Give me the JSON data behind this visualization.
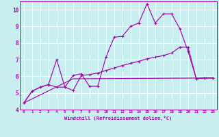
{
  "background_color": "#c8eef0",
  "grid_color": "#ffffff",
  "line_color": "#aa00aa",
  "xlabel": "Windchill (Refroidissement éolien,°C)",
  "ylim": [
    4,
    10.5
  ],
  "xlim": [
    -0.5,
    23.5
  ],
  "yticks": [
    4,
    5,
    6,
    7,
    8,
    9,
    10
  ],
  "xticks": [
    0,
    1,
    2,
    3,
    4,
    5,
    6,
    7,
    8,
    9,
    10,
    11,
    12,
    13,
    14,
    15,
    16,
    17,
    18,
    19,
    20,
    21,
    22,
    23
  ],
  "line1_x": [
    0,
    1,
    2,
    3,
    4,
    5,
    6,
    7,
    8,
    9,
    10,
    11,
    12,
    13,
    14,
    15,
    16,
    17,
    18,
    19,
    20,
    21,
    22,
    23
  ],
  "line1_y": [
    4.4,
    5.1,
    5.35,
    5.5,
    7.0,
    5.35,
    5.15,
    6.05,
    6.1,
    6.2,
    6.35,
    6.5,
    6.65,
    6.78,
    6.9,
    7.05,
    7.15,
    7.25,
    7.4,
    7.75,
    7.75,
    5.85,
    5.9,
    5.9
  ],
  "line2_x": [
    0,
    1,
    2,
    3,
    4,
    5,
    6,
    7,
    8,
    9,
    10,
    11,
    12,
    13,
    14,
    15,
    16,
    17,
    18,
    19,
    20,
    21,
    22,
    23
  ],
  "line2_y": [
    4.4,
    5.1,
    5.35,
    5.5,
    5.35,
    5.35,
    6.05,
    6.15,
    5.4,
    5.4,
    7.15,
    8.35,
    8.4,
    9.0,
    9.2,
    10.35,
    9.2,
    9.75,
    9.75,
    8.85,
    7.5,
    5.85,
    5.9,
    5.9
  ],
  "line3_x": [
    0,
    6,
    23
  ],
  "line3_y": [
    4.4,
    5.85,
    5.9
  ]
}
